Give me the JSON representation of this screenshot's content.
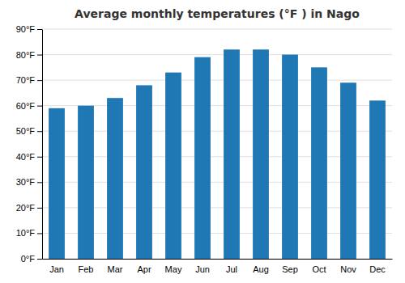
{
  "chart_data": {
    "type": "bar",
    "title": "Average monthly temperatures (°F ) in Nago",
    "categories": [
      "Jan",
      "Feb",
      "Mar",
      "Apr",
      "May",
      "Jun",
      "Jul",
      "Aug",
      "Sep",
      "Oct",
      "Nov",
      "Dec"
    ],
    "values": [
      59,
      60,
      63,
      68,
      73,
      79,
      82,
      82,
      80,
      75,
      69,
      62
    ],
    "ylim": [
      0,
      90
    ],
    "yticks": [
      {
        "value": 0,
        "label": "0°F"
      },
      {
        "value": 10,
        "label": "10°F"
      },
      {
        "value": 20,
        "label": "20°F"
      },
      {
        "value": 30,
        "label": "30°F"
      },
      {
        "value": 40,
        "label": "40°F"
      },
      {
        "value": 50,
        "label": "50°F"
      },
      {
        "value": 60,
        "label": "60°F"
      },
      {
        "value": 70,
        "label": "70°F"
      },
      {
        "value": 80,
        "label": "80°F"
      },
      {
        "value": 90,
        "label": "90°F"
      }
    ],
    "grid": true
  }
}
